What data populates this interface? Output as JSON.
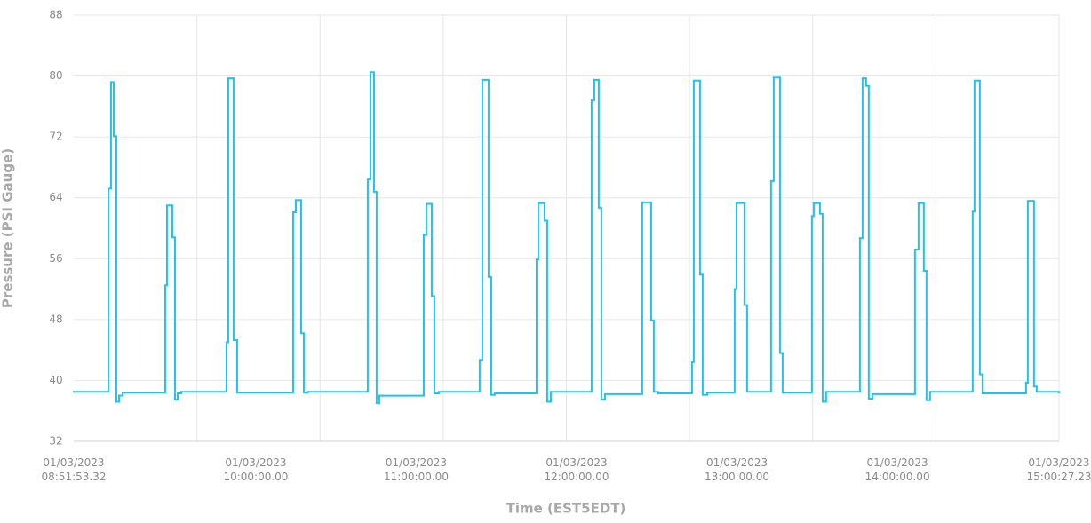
{
  "chart_data": {
    "type": "step-line",
    "x_label": "Time (EST5EDT)",
    "y_label": "Pressure (PSI Gauge)",
    "xlim": [
      "01/03/2023\n08:51:53.32",
      "01/03/2023\n15:00:27.23"
    ],
    "xticks": [
      "01/03/2023\n08:51:53.32",
      "01/03/2023\n10:00:00.00",
      "01/03/2023\n11:00:00.00",
      "01/03/2023\n12:00:00.00",
      "01/03/2023\n13:00:00.00",
      "01/03/2023\n14:00:00.00",
      "01/03/2023\n15:00:27.23"
    ],
    "ylim": [
      32,
      88
    ],
    "yticks": [
      32,
      40,
      48,
      56,
      64,
      72,
      80,
      88
    ],
    "grid": true,
    "series": [
      {
        "color": "#1fc3ef",
        "x": [
          "08:51:53",
          "09:04:50",
          "09:05:50",
          "09:06:50",
          "09:07:50",
          "09:08:50",
          "09:10:10",
          "09:26:07",
          "09:26:46",
          "09:28:46",
          "09:29:46",
          "09:30:46",
          "09:32:05",
          "09:49:02",
          "09:49:42",
          "09:51:41",
          "09:53:01",
          "10:13:58",
          "10:14:58",
          "10:16:57",
          "10:17:57",
          "10:19:16",
          "10:41:52",
          "10:42:52",
          "10:44:12",
          "10:45:11",
          "10:46:11",
          "10:47:31",
          "11:02:49",
          "11:03:48",
          "11:05:48",
          "11:06:47",
          "11:08:28",
          "11:23:44",
          "11:24:44",
          "11:27:04",
          "11:28:04",
          "11:29:23",
          "11:45:01",
          "11:45:40",
          "11:48:00",
          "11:49:00",
          "11:50:20",
          "12:05:37",
          "12:06:37",
          "12:08:16",
          "12:09:16",
          "12:10:36",
          "12:24:33",
          "12:27:53",
          "12:28:52",
          "12:30:32",
          "12:43:10",
          "12:43:50",
          "12:46:09",
          "12:47:09",
          "12:48:49",
          "12:59:07",
          "12:59:47",
          "13:02:46",
          "13:03:46",
          "13:12:44",
          "13:13:44",
          "13:16:04",
          "13:17:04",
          "13:28:01",
          "13:28:41",
          "13:31:01",
          "13:32:01",
          "13:33:20",
          "13:45:58",
          "13:46:58",
          "13:48:17",
          "13:49:17",
          "13:50:37",
          "14:06:34",
          "14:07:54",
          "14:09:53",
          "14:10:53",
          "14:12:13",
          "14:28:10",
          "14:28:50",
          "14:30:50",
          "14:31:50",
          "14:48:07",
          "14:48:47",
          "14:51:06",
          "14:52:06",
          "15:00:27"
        ],
        "values": [
          38.5,
          65.2,
          79.2,
          72.1,
          37.2,
          38.0,
          38.4,
          52.5,
          63.0,
          58.8,
          37.5,
          38.3,
          38.5,
          45.0,
          79.7,
          45.3,
          38.4,
          62.1,
          63.7,
          46.2,
          38.4,
          38.5,
          66.4,
          80.5,
          64.8,
          37.0,
          38.0,
          38.0,
          59.1,
          63.2,
          51.1,
          38.3,
          38.5,
          42.7,
          79.5,
          53.6,
          38.1,
          38.3,
          55.9,
          63.3,
          61.0,
          37.2,
          38.5,
          76.8,
          79.5,
          62.7,
          37.5,
          38.2,
          63.4,
          47.9,
          38.5,
          38.3,
          42.4,
          79.4,
          53.9,
          38.1,
          38.4,
          52.0,
          63.3,
          49.9,
          38.5,
          66.2,
          79.8,
          43.6,
          38.4,
          61.6,
          63.3,
          61.9,
          37.2,
          38.5,
          58.7,
          79.7,
          78.7,
          37.6,
          38.2,
          57.2,
          63.3,
          54.4,
          37.4,
          38.5,
          62.2,
          79.4,
          40.8,
          38.3,
          39.7,
          63.6,
          39.2,
          38.5,
          38.4
        ]
      }
    ]
  }
}
